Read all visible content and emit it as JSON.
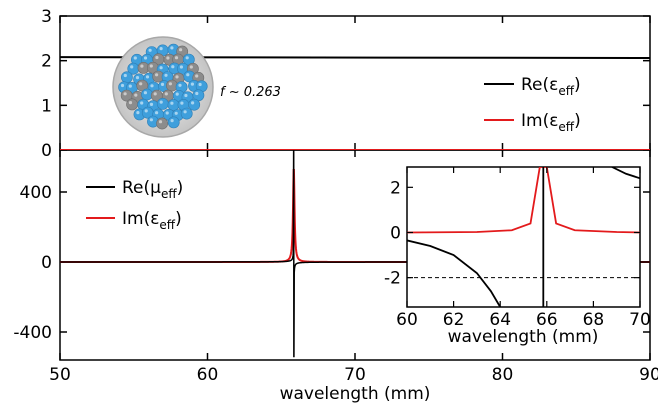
{
  "chart_data": [
    {
      "id": "top-panel",
      "type": "line",
      "xlim": [
        50,
        90
      ],
      "ylim": [
        0,
        3
      ],
      "yticks": [
        0,
        1,
        2,
        3
      ],
      "xlabel": "",
      "ylabel": "",
      "grid": false,
      "legend_position": "right",
      "annotation": "f ~ 0.263",
      "series": [
        {
          "name": "Re(ε_eff)",
          "label_main": "Re(ε",
          "label_sub": "eff",
          "label_close": ")",
          "color": "#000000",
          "x": [
            50,
            90
          ],
          "y": [
            2.08,
            2.06
          ]
        },
        {
          "name": "Im(ε_eff)",
          "label_main": "Im(ε",
          "label_sub": "eff",
          "label_close": ")",
          "color": "#e31a1c",
          "x": [
            50,
            90
          ],
          "y": [
            0.0,
            0.0
          ]
        }
      ]
    },
    {
      "id": "bottom-panel",
      "type": "line",
      "xlim": [
        50,
        90
      ],
      "ylim": [
        -560,
        640
      ],
      "xticks": [
        50,
        60,
        70,
        80,
        90
      ],
      "yticks": [
        -400,
        0,
        400
      ],
      "xlabel": "wavelength (mm)",
      "ylabel": "",
      "grid": false,
      "legend_position": "top-left",
      "series": [
        {
          "name": "Re(μ_eff)",
          "label_main": "Re(μ",
          "label_sub": "eff",
          "label_close": ")",
          "color": "#000000",
          "resonance": 65.85,
          "peak": 640,
          "trough": -540
        },
        {
          "name": "Im(ε_eff)",
          "label_main": "Im(ε",
          "label_sub": "eff",
          "label_close": ")",
          "color": "#e31a1c",
          "resonance": 65.85,
          "peak": 540
        }
      ]
    },
    {
      "id": "inset",
      "type": "line",
      "xlim": [
        60,
        70
      ],
      "ylim": [
        -3.3,
        2.9
      ],
      "xticks": [
        60,
        62,
        64,
        66,
        68,
        70
      ],
      "yticks": [
        -2,
        0,
        2
      ],
      "xlabel": "wavelength (mm)",
      "ylabel": "",
      "reference_line": {
        "y": -2,
        "style": "dashed"
      },
      "series": [
        {
          "name": "Re(μ_eff)",
          "color": "#000000",
          "resonance": 65.85,
          "x": [
            60,
            61,
            62,
            63,
            63.6,
            64.0
          ],
          "y": [
            -0.35,
            -0.6,
            -1.0,
            -1.8,
            -2.6,
            -3.3
          ]
        },
        {
          "name": "Im(ε_eff)",
          "color": "#e31a1c",
          "resonance": 65.85,
          "x": [
            60,
            63,
            64.5,
            65.3,
            65.7,
            66.0,
            66.4,
            67.2,
            69,
            70
          ],
          "y": [
            0.0,
            0.02,
            0.1,
            0.4,
            2.9,
            2.9,
            0.4,
            0.1,
            0.02,
            0.0
          ]
        }
      ]
    }
  ]
}
